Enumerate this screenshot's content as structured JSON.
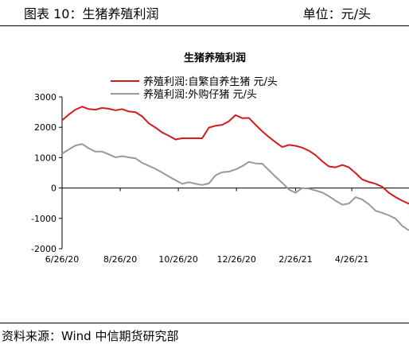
{
  "header": {
    "figure_label": "图表 10：生猪养殖利润",
    "unit_label": "单位：元/头"
  },
  "footer": {
    "source": "资料来源：Wind 中信期货研究部"
  },
  "colors": {
    "self_breeding": "#d7191c",
    "purchased_piglet": "#999999"
  },
  "chart_data": {
    "type": "line",
    "title": "生猪养殖利润",
    "xlabel": "",
    "ylabel": "",
    "ylim": [
      -2000,
      3000
    ],
    "yticks": [
      3000,
      2000,
      1000,
      0,
      -1000,
      -2000
    ],
    "xticks": [
      "6/26/20",
      "8/26/20",
      "10/26/20",
      "12/26/20",
      "2/26/21",
      "4/26/21"
    ],
    "xrange": [
      "2020-06-26",
      "2021-06-25"
    ],
    "grid": false,
    "legend_position": "top",
    "x": [
      "2020-06-26",
      "2020-07-03",
      "2020-07-10",
      "2020-07-17",
      "2020-07-24",
      "2020-07-31",
      "2020-08-07",
      "2020-08-14",
      "2020-08-21",
      "2020-08-28",
      "2020-09-04",
      "2020-09-11",
      "2020-09-18",
      "2020-09-25",
      "2020-10-02",
      "2020-10-09",
      "2020-10-16",
      "2020-10-23",
      "2020-10-30",
      "2020-11-06",
      "2020-11-13",
      "2020-11-20",
      "2020-11-27",
      "2020-12-04",
      "2020-12-11",
      "2020-12-18",
      "2020-12-25",
      "2021-01-01",
      "2021-01-08",
      "2021-01-15",
      "2021-01-22",
      "2021-01-29",
      "2021-02-05",
      "2021-02-12",
      "2021-02-19",
      "2021-02-26",
      "2021-03-05",
      "2021-03-12",
      "2021-03-19",
      "2021-03-26",
      "2021-04-02",
      "2021-04-09",
      "2021-04-16",
      "2021-04-23",
      "2021-04-30",
      "2021-05-07",
      "2021-05-14",
      "2021-05-21",
      "2021-05-28",
      "2021-06-04",
      "2021-06-11",
      "2021-06-18",
      "2021-06-25"
    ],
    "series": [
      {
        "name": "养殖利润:自繁自养生猪 元/头",
        "values": [
          2230,
          2420,
          2580,
          2680,
          2600,
          2580,
          2640,
          2610,
          2560,
          2600,
          2520,
          2500,
          2360,
          2130,
          1990,
          1830,
          1720,
          1600,
          1640,
          1640,
          1640,
          1640,
          1990,
          2050,
          2080,
          2200,
          2400,
          2300,
          2310,
          2080,
          1870,
          1680,
          1510,
          1350,
          1420,
          1390,
          1330,
          1230,
          1080,
          880,
          710,
          680,
          760,
          680,
          490,
          280,
          200,
          140,
          40,
          -160,
          -300,
          -420,
          -520
        ]
      },
      {
        "name": "养殖利润:外购仔猪 元/头",
        "values": [
          1130,
          1270,
          1400,
          1450,
          1310,
          1200,
          1200,
          1110,
          1010,
          1050,
          1010,
          980,
          830,
          730,
          630,
          510,
          380,
          260,
          140,
          190,
          140,
          100,
          150,
          420,
          520,
          540,
          610,
          720,
          860,
          810,
          800,
          590,
          370,
          170,
          -50,
          -160,
          0,
          -20,
          -80,
          -150,
          -270,
          -420,
          -550,
          -510,
          -300,
          -380,
          -540,
          -750,
          -820,
          -900,
          -1010,
          -1250,
          -1400
        ]
      }
    ]
  }
}
